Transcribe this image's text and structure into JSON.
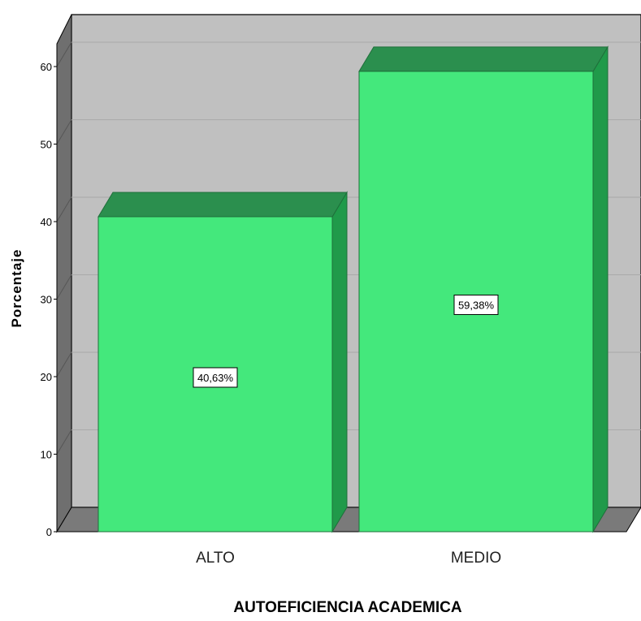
{
  "chart_data": {
    "type": "bar",
    "categories": [
      "ALTO",
      "MEDIO"
    ],
    "values": [
      40.63,
      59.38
    ],
    "data_labels": [
      "40,63%",
      "59,38%"
    ],
    "xlabel": "AUTOEFICIENCIA ACADEMICA",
    "ylabel": "Porcentaje",
    "yticks": [
      "0",
      "10",
      "20",
      "30",
      "40",
      "50",
      "60"
    ],
    "ylim": [
      0,
      64
    ],
    "grid": true,
    "legend": "none",
    "style": "3d",
    "colors": {
      "bar_front": "#44e87c",
      "bar_top": "#2b8f4e",
      "bar_side": "#209a4a",
      "wall_back": "#c0c0c0",
      "wall_side": "#6f6f6f",
      "floor": "#7a7a7a",
      "gridline": "#a9a9a9"
    }
  }
}
